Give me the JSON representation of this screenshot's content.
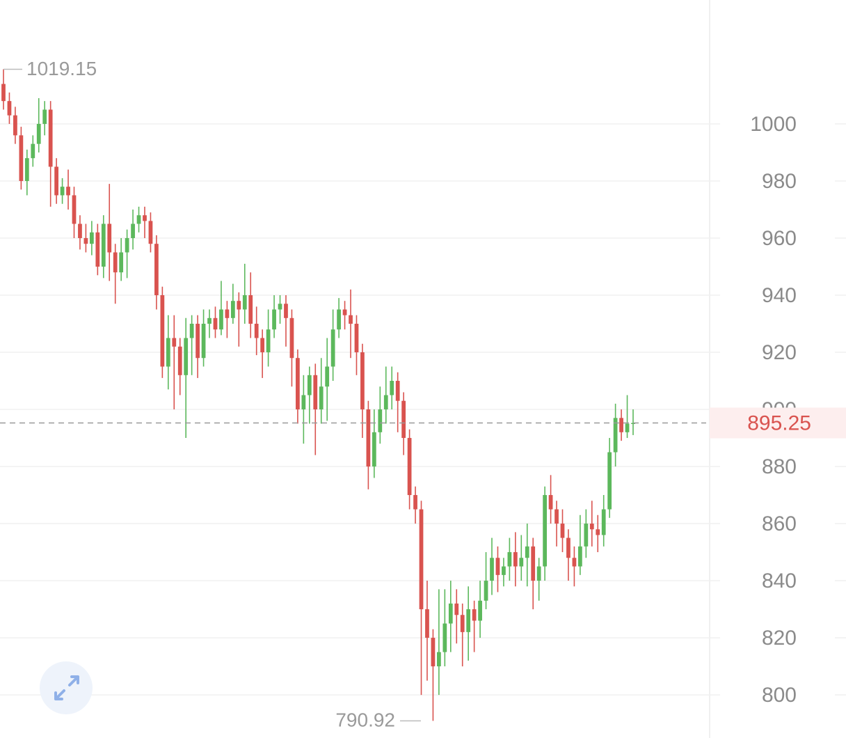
{
  "chart_data": {
    "type": "candlestick",
    "open": [
      1014,
      1008,
      1003,
      996,
      980,
      988,
      993,
      1000,
      1005,
      985,
      975,
      978,
      975,
      965,
      960,
      958,
      962,
      950,
      965,
      955,
      948,
      955,
      960,
      965,
      968,
      966,
      958,
      940,
      915,
      925,
      922,
      912,
      925,
      930,
      918,
      930,
      932,
      928,
      935,
      932,
      938,
      935,
      940,
      930,
      925,
      920,
      928,
      935,
      937,
      932,
      918,
      900,
      905,
      912,
      900,
      908,
      915,
      928,
      935,
      933,
      930,
      920,
      900,
      880,
      892,
      900,
      905,
      910,
      903,
      890,
      870,
      865,
      830,
      820,
      810,
      815,
      825,
      832,
      828,
      822,
      830,
      826,
      833,
      840,
      848,
      842,
      845,
      850,
      845,
      848,
      852,
      840,
      845,
      870,
      865,
      860,
      855,
      848,
      845,
      852,
      860,
      858,
      856,
      865,
      885,
      897,
      892,
      895
    ],
    "high": [
      1019.15,
      1011,
      1006,
      999,
      991,
      996,
      1009,
      1008,
      1008,
      988,
      981,
      984,
      978,
      968,
      965,
      966,
      965,
      968,
      979,
      958,
      960,
      963,
      970,
      971,
      971,
      969,
      961,
      943,
      933,
      933,
      925,
      932,
      933,
      933,
      935,
      935,
      936,
      945,
      938,
      944,
      941,
      951,
      948,
      936,
      928,
      935,
      940,
      940,
      940,
      935,
      921,
      912,
      915,
      916,
      918,
      925,
      935,
      939,
      938,
      942,
      933,
      923,
      903,
      900,
      908,
      915,
      915,
      913,
      906,
      893,
      873,
      868,
      840,
      823,
      837,
      837,
      840,
      837,
      832,
      838,
      833,
      840,
      850,
      855,
      852,
      848,
      855,
      857,
      856,
      860,
      855,
      848,
      873,
      877,
      868,
      865,
      858,
      852,
      863,
      865,
      868,
      863,
      870,
      890,
      902,
      900,
      905,
      900
    ],
    "low": [
      1005,
      1000,
      993,
      977,
      975,
      985,
      990,
      996,
      971,
      972,
      972,
      970,
      960,
      956,
      955,
      954,
      947,
      946,
      945,
      937,
      945,
      946,
      956,
      962,
      960,
      955,
      935,
      911,
      907,
      900,
      905,
      890,
      912,
      911,
      915,
      925,
      925,
      926,
      925,
      930,
      922,
      930,
      925,
      919,
      911,
      915,
      925,
      930,
      922,
      908,
      895,
      888,
      895,
      884,
      895,
      896,
      910,
      925,
      928,
      918,
      912,
      890,
      872,
      876,
      888,
      895,
      900,
      892,
      884,
      865,
      860,
      800,
      805,
      790.92,
      800,
      810,
      815,
      818,
      810,
      812,
      815,
      820,
      830,
      835,
      836,
      838,
      840,
      838,
      840,
      838,
      830,
      833,
      840,
      860,
      852,
      850,
      840,
      838,
      842,
      848,
      852,
      850,
      852,
      862,
      880,
      889,
      890,
      891
    ],
    "close": [
      1008,
      1003,
      996,
      980,
      988,
      993,
      1000,
      1005,
      985,
      975,
      978,
      975,
      965,
      960,
      958,
      962,
      950,
      965,
      955,
      948,
      955,
      960,
      965,
      968,
      966,
      958,
      940,
      915,
      925,
      922,
      912,
      925,
      930,
      918,
      930,
      932,
      928,
      935,
      932,
      938,
      935,
      940,
      930,
      925,
      920,
      928,
      935,
      937,
      932,
      918,
      900,
      905,
      912,
      900,
      908,
      915,
      928,
      935,
      933,
      930,
      920,
      900,
      880,
      892,
      900,
      905,
      910,
      903,
      890,
      870,
      865,
      830,
      820,
      810,
      815,
      825,
      832,
      828,
      822,
      830,
      826,
      833,
      840,
      848,
      842,
      845,
      850,
      845,
      848,
      852,
      840,
      845,
      870,
      865,
      860,
      855,
      848,
      845,
      852,
      860,
      858,
      856,
      865,
      885,
      897,
      892,
      895,
      895.25
    ],
    "up_color": "#5cb85c",
    "down_color": "#d9534f",
    "ylim": [
      784.9,
      1043.4
    ],
    "yticks": [
      800,
      820,
      840,
      860,
      880,
      900,
      920,
      940,
      960,
      980,
      1000
    ],
    "grid": true,
    "max_label": 1019.15,
    "min_label": 790.92,
    "last_price": 895.25
  }
}
